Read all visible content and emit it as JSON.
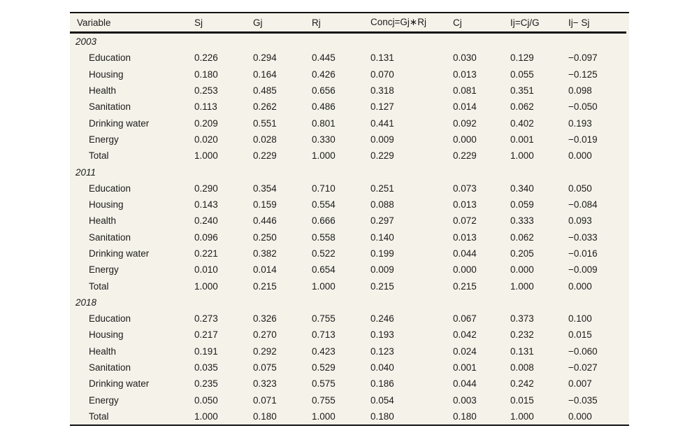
{
  "table": {
    "columns": [
      "Variable",
      "Sj",
      "Gj",
      "Rj",
      "Concj=Gj∗Rj",
      "Cj",
      "Ij=Cj/G",
      "Ij− Sj"
    ],
    "sections": [
      {
        "year": "2003",
        "rows": [
          {
            "label": "Education",
            "values": [
              "0.226",
              "0.294",
              "0.445",
              "0.131",
              "0.030",
              "0.129",
              "−0.097"
            ]
          },
          {
            "label": "Housing",
            "values": [
              "0.180",
              "0.164",
              "0.426",
              "0.070",
              "0.013",
              "0.055",
              "−0.125"
            ]
          },
          {
            "label": "Health",
            "values": [
              "0.253",
              "0.485",
              "0.656",
              "0.318",
              "0.081",
              "0.351",
              "0.098"
            ]
          },
          {
            "label": "Sanitation",
            "values": [
              "0.113",
              "0.262",
              "0.486",
              "0.127",
              "0.014",
              "0.062",
              "−0.050"
            ]
          },
          {
            "label": "Drinking water",
            "values": [
              "0.209",
              "0.551",
              "0.801",
              "0.441",
              "0.092",
              "0.402",
              "0.193"
            ]
          },
          {
            "label": "Energy",
            "values": [
              "0.020",
              "0.028",
              "0.330",
              "0.009",
              "0.000",
              "0.001",
              "−0.019"
            ]
          },
          {
            "label": "Total",
            "values": [
              "1.000",
              "0.229",
              "1.000",
              "0.229",
              "0.229",
              "1.000",
              "0.000"
            ]
          }
        ]
      },
      {
        "year": "2011",
        "rows": [
          {
            "label": "Education",
            "values": [
              "0.290",
              "0.354",
              "0.710",
              "0.251",
              "0.073",
              "0.340",
              "0.050"
            ]
          },
          {
            "label": "Housing",
            "values": [
              "0.143",
              "0.159",
              "0.554",
              "0.088",
              "0.013",
              "0.059",
              "−0.084"
            ]
          },
          {
            "label": "Health",
            "values": [
              "0.240",
              "0.446",
              "0.666",
              "0.297",
              "0.072",
              "0.333",
              "0.093"
            ]
          },
          {
            "label": "Sanitation",
            "values": [
              "0.096",
              "0.250",
              "0.558",
              "0.140",
              "0.013",
              "0.062",
              "−0.033"
            ]
          },
          {
            "label": "Drinking water",
            "values": [
              "0.221",
              "0.382",
              "0.522",
              "0.199",
              "0.044",
              "0.205",
              "−0.016"
            ]
          },
          {
            "label": "Energy",
            "values": [
              "0.010",
              "0.014",
              "0.654",
              "0.009",
              "0.000",
              "0.000",
              "−0.009"
            ]
          },
          {
            "label": "Total",
            "values": [
              "1.000",
              "0.215",
              "1.000",
              "0.215",
              "0.215",
              "1.000",
              "0.000"
            ]
          }
        ]
      },
      {
        "year": "2018",
        "rows": [
          {
            "label": "Education",
            "values": [
              "0.273",
              "0.326",
              "0.755",
              "0.246",
              "0.067",
              "0.373",
              "0.100"
            ]
          },
          {
            "label": "Housing",
            "values": [
              "0.217",
              "0.270",
              "0.713",
              "0.193",
              "0.042",
              "0.232",
              "0.015"
            ]
          },
          {
            "label": "Health",
            "values": [
              "0.191",
              "0.292",
              "0.423",
              "0.123",
              "0.024",
              "0.131",
              "−0.060"
            ]
          },
          {
            "label": "Sanitation",
            "values": [
              "0.035",
              "0.075",
              "0.529",
              "0.040",
              "0.001",
              "0.008",
              "−0.027"
            ]
          },
          {
            "label": "Drinking water",
            "values": [
              "0.235",
              "0.323",
              "0.575",
              "0.186",
              "0.044",
              "0.242",
              "0.007"
            ]
          },
          {
            "label": "Energy",
            "values": [
              "0.050",
              "0.071",
              "0.755",
              "0.054",
              "0.003",
              "0.015",
              "−0.035"
            ]
          },
          {
            "label": "Total",
            "values": [
              "1.000",
              "0.180",
              "1.000",
              "0.180",
              "0.180",
              "1.000",
              "0.000"
            ]
          }
        ]
      }
    ],
    "colors": {
      "panel_background": "#f5f2e9",
      "page_background": "#ffffff",
      "text": "#1b1b1b",
      "rule": "#121212"
    }
  }
}
